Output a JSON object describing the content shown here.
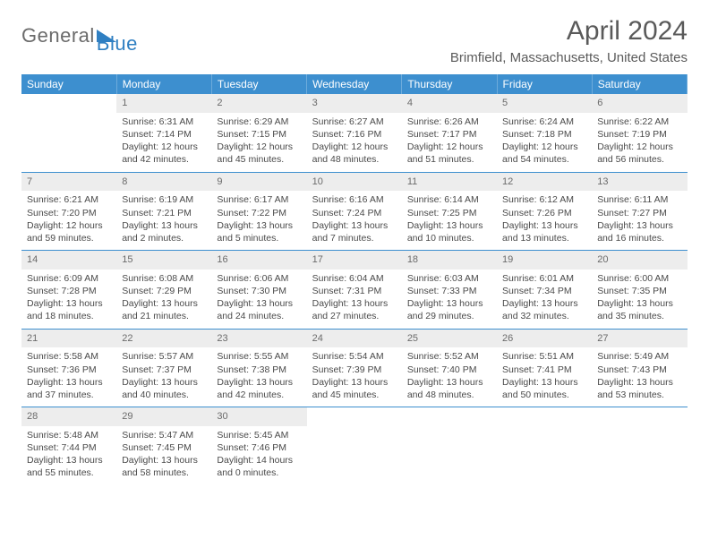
{
  "logo": {
    "word1": "General",
    "word2": "Blue"
  },
  "title": "April 2024",
  "location": "Brimfield, Massachusetts, United States",
  "colors": {
    "header_bg": "#3d8fcf",
    "header_fg": "#ffffff",
    "daynum_bg": "#ededed",
    "text": "#4a4a4a"
  },
  "weekdays": [
    "Sunday",
    "Monday",
    "Tuesday",
    "Wednesday",
    "Thursday",
    "Friday",
    "Saturday"
  ],
  "weeks": [
    [
      {
        "n": "",
        "sr": "",
        "ss": "",
        "dl": ""
      },
      {
        "n": "1",
        "sr": "Sunrise: 6:31 AM",
        "ss": "Sunset: 7:14 PM",
        "dl": "Daylight: 12 hours and 42 minutes."
      },
      {
        "n": "2",
        "sr": "Sunrise: 6:29 AM",
        "ss": "Sunset: 7:15 PM",
        "dl": "Daylight: 12 hours and 45 minutes."
      },
      {
        "n": "3",
        "sr": "Sunrise: 6:27 AM",
        "ss": "Sunset: 7:16 PM",
        "dl": "Daylight: 12 hours and 48 minutes."
      },
      {
        "n": "4",
        "sr": "Sunrise: 6:26 AM",
        "ss": "Sunset: 7:17 PM",
        "dl": "Daylight: 12 hours and 51 minutes."
      },
      {
        "n": "5",
        "sr": "Sunrise: 6:24 AM",
        "ss": "Sunset: 7:18 PM",
        "dl": "Daylight: 12 hours and 54 minutes."
      },
      {
        "n": "6",
        "sr": "Sunrise: 6:22 AM",
        "ss": "Sunset: 7:19 PM",
        "dl": "Daylight: 12 hours and 56 minutes."
      }
    ],
    [
      {
        "n": "7",
        "sr": "Sunrise: 6:21 AM",
        "ss": "Sunset: 7:20 PM",
        "dl": "Daylight: 12 hours and 59 minutes."
      },
      {
        "n": "8",
        "sr": "Sunrise: 6:19 AM",
        "ss": "Sunset: 7:21 PM",
        "dl": "Daylight: 13 hours and 2 minutes."
      },
      {
        "n": "9",
        "sr": "Sunrise: 6:17 AM",
        "ss": "Sunset: 7:22 PM",
        "dl": "Daylight: 13 hours and 5 minutes."
      },
      {
        "n": "10",
        "sr": "Sunrise: 6:16 AM",
        "ss": "Sunset: 7:24 PM",
        "dl": "Daylight: 13 hours and 7 minutes."
      },
      {
        "n": "11",
        "sr": "Sunrise: 6:14 AM",
        "ss": "Sunset: 7:25 PM",
        "dl": "Daylight: 13 hours and 10 minutes."
      },
      {
        "n": "12",
        "sr": "Sunrise: 6:12 AM",
        "ss": "Sunset: 7:26 PM",
        "dl": "Daylight: 13 hours and 13 minutes."
      },
      {
        "n": "13",
        "sr": "Sunrise: 6:11 AM",
        "ss": "Sunset: 7:27 PM",
        "dl": "Daylight: 13 hours and 16 minutes."
      }
    ],
    [
      {
        "n": "14",
        "sr": "Sunrise: 6:09 AM",
        "ss": "Sunset: 7:28 PM",
        "dl": "Daylight: 13 hours and 18 minutes."
      },
      {
        "n": "15",
        "sr": "Sunrise: 6:08 AM",
        "ss": "Sunset: 7:29 PM",
        "dl": "Daylight: 13 hours and 21 minutes."
      },
      {
        "n": "16",
        "sr": "Sunrise: 6:06 AM",
        "ss": "Sunset: 7:30 PM",
        "dl": "Daylight: 13 hours and 24 minutes."
      },
      {
        "n": "17",
        "sr": "Sunrise: 6:04 AM",
        "ss": "Sunset: 7:31 PM",
        "dl": "Daylight: 13 hours and 27 minutes."
      },
      {
        "n": "18",
        "sr": "Sunrise: 6:03 AM",
        "ss": "Sunset: 7:33 PM",
        "dl": "Daylight: 13 hours and 29 minutes."
      },
      {
        "n": "19",
        "sr": "Sunrise: 6:01 AM",
        "ss": "Sunset: 7:34 PM",
        "dl": "Daylight: 13 hours and 32 minutes."
      },
      {
        "n": "20",
        "sr": "Sunrise: 6:00 AM",
        "ss": "Sunset: 7:35 PM",
        "dl": "Daylight: 13 hours and 35 minutes."
      }
    ],
    [
      {
        "n": "21",
        "sr": "Sunrise: 5:58 AM",
        "ss": "Sunset: 7:36 PM",
        "dl": "Daylight: 13 hours and 37 minutes."
      },
      {
        "n": "22",
        "sr": "Sunrise: 5:57 AM",
        "ss": "Sunset: 7:37 PM",
        "dl": "Daylight: 13 hours and 40 minutes."
      },
      {
        "n": "23",
        "sr": "Sunrise: 5:55 AM",
        "ss": "Sunset: 7:38 PM",
        "dl": "Daylight: 13 hours and 42 minutes."
      },
      {
        "n": "24",
        "sr": "Sunrise: 5:54 AM",
        "ss": "Sunset: 7:39 PM",
        "dl": "Daylight: 13 hours and 45 minutes."
      },
      {
        "n": "25",
        "sr": "Sunrise: 5:52 AM",
        "ss": "Sunset: 7:40 PM",
        "dl": "Daylight: 13 hours and 48 minutes."
      },
      {
        "n": "26",
        "sr": "Sunrise: 5:51 AM",
        "ss": "Sunset: 7:41 PM",
        "dl": "Daylight: 13 hours and 50 minutes."
      },
      {
        "n": "27",
        "sr": "Sunrise: 5:49 AM",
        "ss": "Sunset: 7:43 PM",
        "dl": "Daylight: 13 hours and 53 minutes."
      }
    ],
    [
      {
        "n": "28",
        "sr": "Sunrise: 5:48 AM",
        "ss": "Sunset: 7:44 PM",
        "dl": "Daylight: 13 hours and 55 minutes."
      },
      {
        "n": "29",
        "sr": "Sunrise: 5:47 AM",
        "ss": "Sunset: 7:45 PM",
        "dl": "Daylight: 13 hours and 58 minutes."
      },
      {
        "n": "30",
        "sr": "Sunrise: 5:45 AM",
        "ss": "Sunset: 7:46 PM",
        "dl": "Daylight: 14 hours and 0 minutes."
      },
      {
        "n": "",
        "sr": "",
        "ss": "",
        "dl": ""
      },
      {
        "n": "",
        "sr": "",
        "ss": "",
        "dl": ""
      },
      {
        "n": "",
        "sr": "",
        "ss": "",
        "dl": ""
      },
      {
        "n": "",
        "sr": "",
        "ss": "",
        "dl": ""
      }
    ]
  ]
}
